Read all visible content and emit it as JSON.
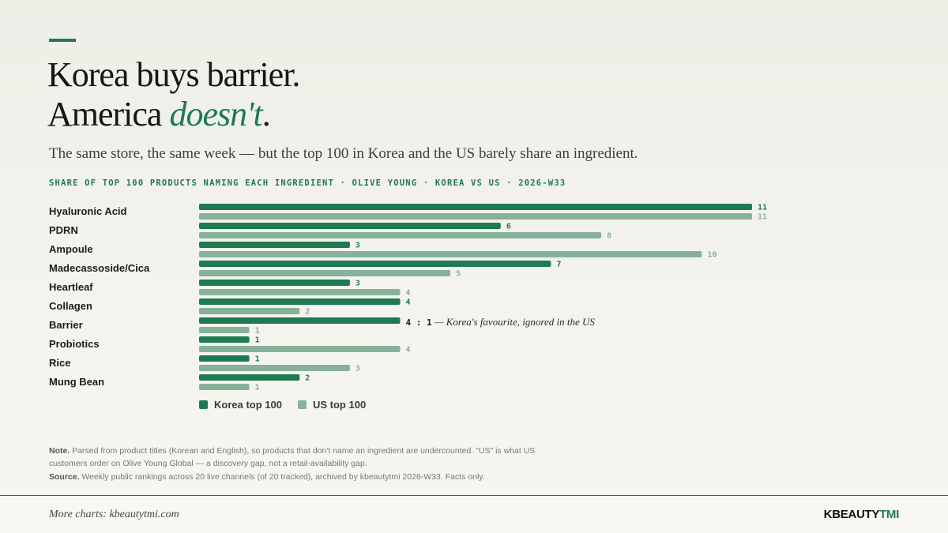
{
  "header": {
    "headline_line1": "Korea buys barrier.",
    "headline_line2_prefix": "America ",
    "headline_line2_emphasis": "doesn't",
    "headline_line2_suffix": ".",
    "subtitle": "The same store, the same week — but the top 100 in Korea and the US barely share an ingredient.",
    "chart_label": "SHARE OF TOP 100 PRODUCTS NAMING EACH INGREDIENT · OLIVE YOUNG · KOREA VS US · 2026-W33"
  },
  "colors": {
    "korea": "#1d7a53",
    "us": "#86b29a",
    "accent": "#1d7a53"
  },
  "chart_data": {
    "type": "bar",
    "orientation": "horizontal",
    "categories": [
      "Hyaluronic Acid",
      "PDRN",
      "Ampoule",
      "Madecassoside/Cica",
      "Heartleaf",
      "Collagen",
      "Barrier",
      "Probiotics",
      "Rice",
      "Mung Bean"
    ],
    "series": [
      {
        "name": "Korea top 100",
        "values": [
          11,
          6,
          3,
          7,
          3,
          4,
          4,
          1,
          1,
          2
        ]
      },
      {
        "name": "US top 100",
        "values": [
          11,
          8,
          10,
          5,
          4,
          2,
          1,
          4,
          3,
          1
        ]
      }
    ],
    "xlim": [
      0,
      11
    ],
    "grid": false,
    "legend": "bottom-left",
    "annotation": {
      "category": "Barrier",
      "ratio": "4 : 1",
      "text": " — Korea's favourite, ignored in the US"
    }
  },
  "legend": {
    "korea_label": "Korea top 100",
    "us_label": "US top 100"
  },
  "notes": {
    "note_label": "Note.",
    "note_text": " Parsed from product titles (Korean and English), so products that don't name an ingredient are undercounted. \"US\" is what US customers order on Olive Young Global — a discovery gap, not a retail-availability gap.",
    "source_label": "Source.",
    "source_text": " Weekly public rankings across 20 live channels (of 20 tracked), archived by kbeautytmi 2026-W33. Facts only."
  },
  "footer": {
    "more_charts": "More charts: kbeautytmi.com",
    "brand_main": "KBEAUTY",
    "brand_accent": "TMI"
  }
}
